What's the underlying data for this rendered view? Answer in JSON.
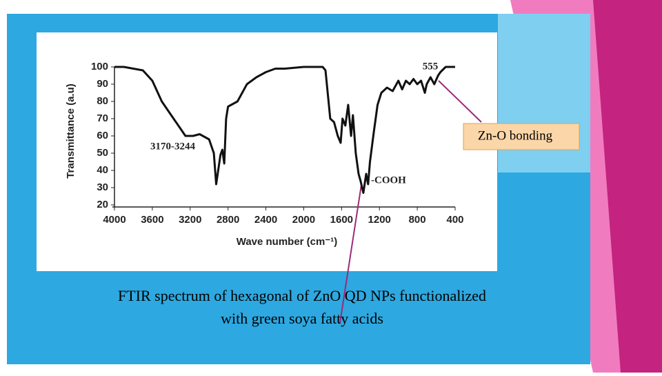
{
  "chart_data": {
    "type": "line",
    "x_label": "Wave number (cm⁻¹)",
    "y_label": "Transmittance (a.u)",
    "annotations": [
      "555",
      "3170-3244",
      "-COOH"
    ],
    "xlim": [
      4000,
      400
    ],
    "xticks": [
      4000,
      3600,
      3200,
      2800,
      2400,
      2000,
      1600,
      1200,
      800,
      400
    ],
    "ylim": [
      20,
      100
    ],
    "yticks": [
      20,
      30,
      40,
      50,
      60,
      70,
      80,
      90,
      100
    ],
    "series": [
      {
        "name": "FTIR",
        "color": "#111111",
        "x": [
          4000,
          3900,
          3800,
          3700,
          3600,
          3500,
          3400,
          3300,
          3250,
          3170,
          3100,
          3000,
          2950,
          2925,
          2880,
          2860,
          2840,
          2820,
          2800,
          2700,
          2600,
          2500,
          2400,
          2300,
          2200,
          2000,
          1800,
          1770,
          1720,
          1680,
          1640,
          1610,
          1590,
          1560,
          1530,
          1500,
          1480,
          1450,
          1420,
          1400,
          1370,
          1340,
          1320,
          1300,
          1260,
          1220,
          1180,
          1120,
          1060,
          1000,
          960,
          920,
          880,
          840,
          800,
          760,
          720,
          700,
          660,
          620,
          580,
          555,
          500,
          450,
          400
        ],
        "values": [
          100,
          100,
          99,
          98,
          92,
          80,
          72,
          64,
          60,
          60,
          61,
          58,
          50,
          32,
          49,
          52,
          44,
          70,
          77,
          80,
          90,
          94,
          97,
          99,
          99,
          100,
          100,
          98,
          70,
          68,
          60,
          56,
          70,
          66,
          78,
          60,
          72,
          50,
          38,
          34,
          27,
          38,
          32,
          45,
          62,
          78,
          85,
          88,
          86,
          92,
          87,
          92,
          90,
          93,
          90,
          92,
          85,
          90,
          94,
          90,
          95,
          97,
          100,
          100,
          100
        ]
      }
    ]
  },
  "slide": {
    "callout": "Zn-O bonding",
    "caption": [
      "FTIR spectrum of hexagonal of ZnO QD NPs functionalized",
      "with green soya fatty acids"
    ]
  }
}
